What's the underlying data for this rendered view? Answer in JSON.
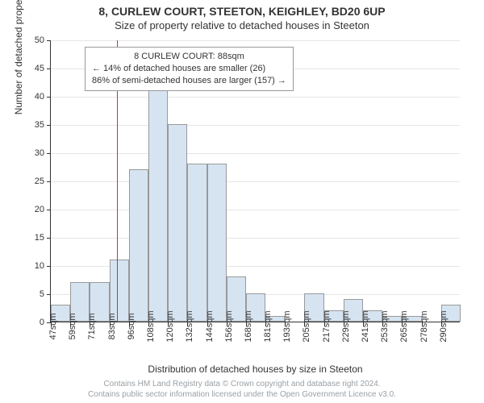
{
  "title_main": "8, CURLEW COURT, STEETON, KEIGHLEY, BD20 6UP",
  "title_sub": "Size of property relative to detached houses in Steeton",
  "chart": {
    "type": "histogram",
    "y_axis": {
      "label": "Number of detached properties",
      "min": 0,
      "max": 50,
      "tick_step": 5,
      "ticks": [
        0,
        5,
        10,
        15,
        20,
        25,
        30,
        35,
        40,
        45,
        50
      ]
    },
    "x_axis": {
      "label": "Distribution of detached houses by size in Steeton",
      "tick_labels": [
        "47sqm",
        "59sqm",
        "71sqm",
        "83sqm",
        "96sqm",
        "108sqm",
        "120sqm",
        "132sqm",
        "144sqm",
        "156sqm",
        "168sqm",
        "181sqm",
        "193sqm",
        "205sqm",
        "217sqm",
        "229sqm",
        "241sqm",
        "253sqm",
        "265sqm",
        "278sqm",
        "290sqm"
      ]
    },
    "bars": {
      "values": [
        3,
        7,
        7,
        11,
        27,
        45,
        35,
        28,
        28,
        8,
        5,
        1,
        0,
        5,
        2,
        4,
        2,
        1,
        1,
        0,
        3
      ],
      "fill_color": "#d6e4f2",
      "border_color": "#999999",
      "bar_width_fraction": 1.0
    },
    "grid": {
      "color": "#e6e6e6"
    },
    "marker": {
      "position_index": 3.4,
      "color": "#cc3333"
    },
    "legend": {
      "line1": "8 CURLEW COURT: 88sqm",
      "line2": "← 14% of detached houses are smaller (26)",
      "line3": "86% of semi-detached houses are larger (157) →",
      "bg_color": "#ffffff",
      "border_color": "#999999"
    },
    "background_color": "#ffffff"
  },
  "footer": {
    "line1": "Contains HM Land Registry data © Crown copyright and database right 2024.",
    "line2": "Contains public sector information licensed under the Open Government Licence v3.0."
  }
}
